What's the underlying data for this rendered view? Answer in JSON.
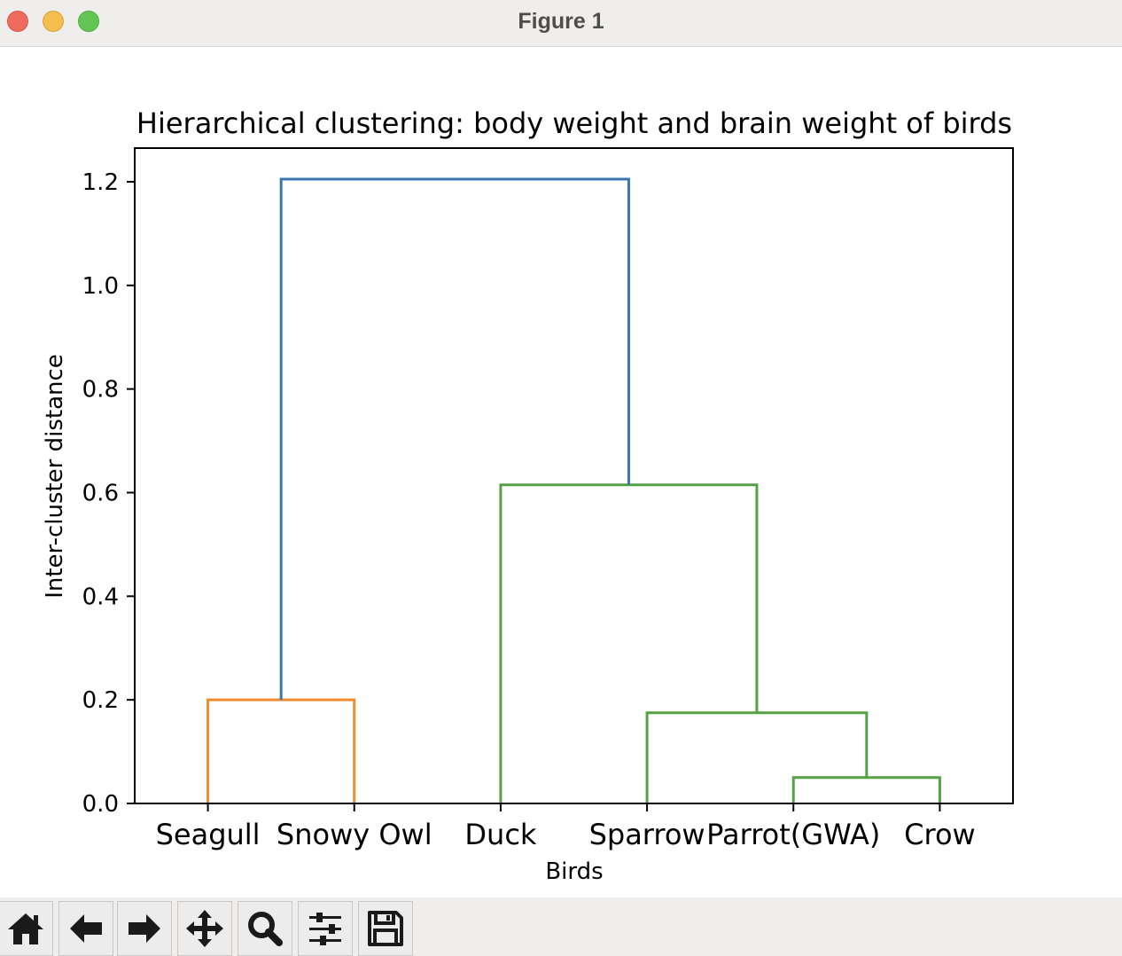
{
  "window": {
    "title": "Figure 1"
  },
  "toolbar": {
    "buttons": [
      {
        "name": "home",
        "icon": "home-icon"
      },
      {
        "name": "back",
        "icon": "arrow-left-icon"
      },
      {
        "name": "forward",
        "icon": "arrow-right-icon"
      },
      {
        "name": "pan",
        "icon": "move-icon"
      },
      {
        "name": "zoom",
        "icon": "zoom-icon"
      },
      {
        "name": "configure",
        "icon": "sliders-icon"
      },
      {
        "name": "save",
        "icon": "save-icon"
      }
    ]
  },
  "chart_data": {
    "type": "dendrogram",
    "title": "Hierarchical clustering: body weight and brain weight of birds",
    "xlabel": "Birds",
    "ylabel": "Inter-cluster distance",
    "leaves": [
      "Seagull",
      "Snowy Owl",
      "Duck",
      "Sparrow",
      "Parrot(GWA)",
      "Crow"
    ],
    "ylim": [
      0,
      1.265
    ],
    "yticks": [
      0.0,
      0.2,
      0.4,
      0.6,
      0.8,
      1.0,
      1.2
    ],
    "ytick_labels": [
      "0.0",
      "0.2",
      "0.4",
      "0.6",
      "0.8",
      "1.0",
      "1.2"
    ],
    "links": [
      {
        "left": 4,
        "right": 5,
        "height": 0.05,
        "color": "#55a145"
      },
      {
        "left": 3,
        "right": "Parrot(GWA)+Crow",
        "height": 0.175,
        "color": "#55a145"
      },
      {
        "left": 0,
        "right": 1,
        "height": 0.2,
        "color": "#f28b30"
      },
      {
        "left": 2,
        "right": "Sparrow+Parrot(GWA)+Crow",
        "height": 0.615,
        "color": "#55a145"
      },
      {
        "left": "Seagull+Snowy Owl",
        "right": "Duck+Sparrow+Parrot(GWA)+Crow",
        "height": 1.205,
        "color": "#3b76af"
      }
    ],
    "grid": false,
    "legend": "none"
  }
}
